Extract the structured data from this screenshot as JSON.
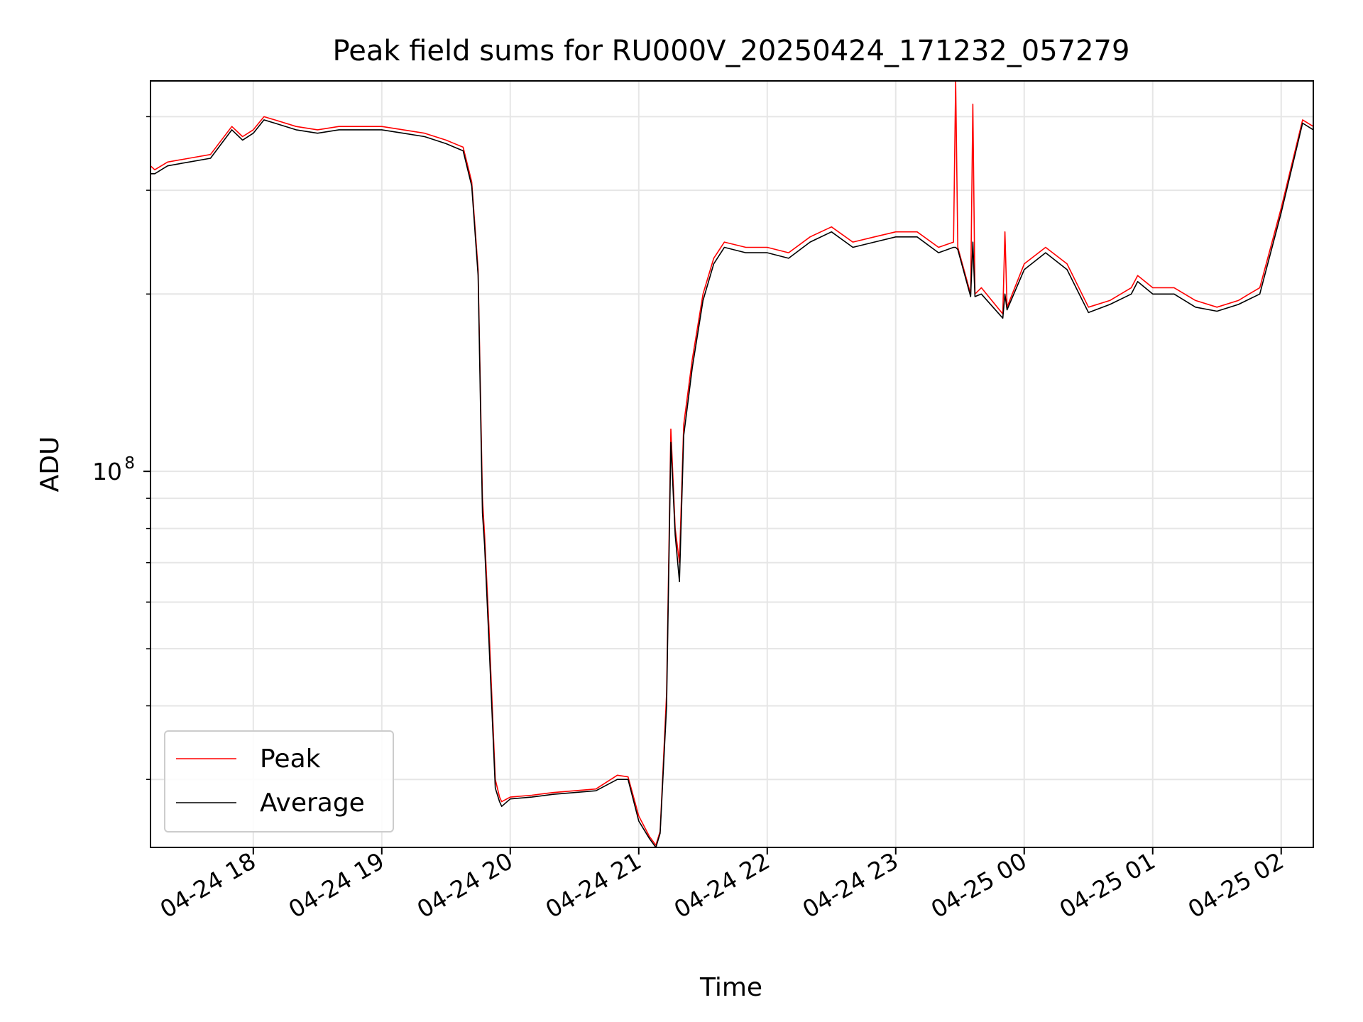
{
  "chart_data": {
    "type": "line",
    "title": "Peak field sums for RU000V_20250424_171232_057279",
    "xlabel": "Time",
    "ylabel": "ADU",
    "y_scale": "log",
    "ylim": [
      23000000,
      460000000
    ],
    "xlim": [
      "04-24 17:12",
      "04-25 02:15"
    ],
    "grid": true,
    "legend_position": "lower-left",
    "x_ticks": [
      "04-24 18",
      "04-24 19",
      "04-24 20",
      "04-24 21",
      "04-24 22",
      "04-24 23",
      "04-25 00",
      "04-25 01",
      "04-25 02"
    ],
    "y_tick_major": {
      "mantissa": "10",
      "exponent": "8",
      "value": 100000000
    },
    "y_minor_ticks": [
      30000000,
      40000000,
      50000000,
      60000000,
      70000000,
      80000000,
      90000000,
      200000000,
      300000000,
      400000000
    ],
    "series": [
      {
        "name": "Peak",
        "color": "#ff0000",
        "x": [
          "04-24 17:12",
          "04-24 17:14",
          "04-24 17:20",
          "04-24 17:30",
          "04-24 17:40",
          "04-24 17:50",
          "04-24 17:55",
          "04-24 18:00",
          "04-24 18:05",
          "04-24 18:10",
          "04-24 18:20",
          "04-24 18:30",
          "04-24 18:40",
          "04-24 18:50",
          "04-24 19:00",
          "04-24 19:10",
          "04-24 19:20",
          "04-24 19:30",
          "04-24 19:38",
          "04-24 19:42",
          "04-24 19:45",
          "04-24 19:47",
          "04-24 19:48",
          "04-24 19:50",
          "04-24 19:53",
          "04-24 19:55",
          "04-24 19:56",
          "04-24 20:00",
          "04-24 20:10",
          "04-24 20:20",
          "04-24 20:30",
          "04-24 20:40",
          "04-24 20:50",
          "04-24 20:55",
          "04-24 21:00",
          "04-24 21:05",
          "04-24 21:08",
          "04-24 21:10",
          "04-24 21:13",
          "04-24 21:15",
          "04-24 21:17",
          "04-24 21:19",
          "04-24 21:21",
          "04-24 21:25",
          "04-24 21:30",
          "04-24 21:35",
          "04-24 21:40",
          "04-24 21:50",
          "04-24 22:00",
          "04-24 22:10",
          "04-24 22:20",
          "04-24 22:30",
          "04-24 22:40",
          "04-24 22:50",
          "04-24 23:00",
          "04-24 23:10",
          "04-24 23:20",
          "04-24 23:27",
          "04-24 23:28",
          "04-24 23:29",
          "04-24 23:35",
          "04-24 23:36",
          "04-24 23:37",
          "04-24 23:40",
          "04-24 23:50",
          "04-24 23:51",
          "04-24 23:52",
          "04-25 00:00",
          "04-25 00:10",
          "04-25 00:20",
          "04-25 00:30",
          "04-25 00:40",
          "04-25 00:50",
          "04-25 00:53",
          "04-25 01:00",
          "04-25 01:10",
          "04-25 01:20",
          "04-25 01:30",
          "04-25 01:40",
          "04-25 01:45",
          "04-25 01:50",
          "04-25 02:00",
          "04-25 02:10",
          "04-25 02:15"
        ],
        "y": [
          330000000,
          325000000,
          335000000,
          340000000,
          345000000,
          385000000,
          370000000,
          380000000,
          400000000,
          395000000,
          385000000,
          380000000,
          385000000,
          385000000,
          385000000,
          380000000,
          375000000,
          365000000,
          355000000,
          310000000,
          220000000,
          90000000,
          78000000,
          55000000,
          30000000,
          28000000,
          27500000,
          28000000,
          28200000,
          28500000,
          28700000,
          28900000,
          30500000,
          30300000,
          26000000,
          24000000,
          23200000,
          24500000,
          42000000,
          118000000,
          80000000,
          70000000,
          120000000,
          155000000,
          200000000,
          230000000,
          245000000,
          240000000,
          240000000,
          235000000,
          250000000,
          260000000,
          245000000,
          250000000,
          255000000,
          255000000,
          240000000,
          245000000,
          460000000,
          240000000,
          200000000,
          420000000,
          200000000,
          205000000,
          185000000,
          255000000,
          190000000,
          225000000,
          240000000,
          225000000,
          190000000,
          195000000,
          205000000,
          215000000,
          205000000,
          205000000,
          195000000,
          190000000,
          195000000,
          200000000,
          205000000,
          280000000,
          395000000,
          385000000
        ]
      },
      {
        "name": "Average",
        "color": "#000000",
        "x": [
          "04-24 17:12",
          "04-24 17:14",
          "04-24 17:20",
          "04-24 17:30",
          "04-24 17:40",
          "04-24 17:50",
          "04-24 17:55",
          "04-24 18:00",
          "04-24 18:05",
          "04-24 18:10",
          "04-24 18:20",
          "04-24 18:30",
          "04-24 18:40",
          "04-24 18:50",
          "04-24 19:00",
          "04-24 19:10",
          "04-24 19:20",
          "04-24 19:30",
          "04-24 19:38",
          "04-24 19:42",
          "04-24 19:45",
          "04-24 19:47",
          "04-24 19:48",
          "04-24 19:50",
          "04-24 19:53",
          "04-24 19:55",
          "04-24 19:56",
          "04-24 20:00",
          "04-24 20:10",
          "04-24 20:20",
          "04-24 20:30",
          "04-24 20:40",
          "04-24 20:50",
          "04-24 20:55",
          "04-24 21:00",
          "04-24 21:05",
          "04-24 21:08",
          "04-24 21:10",
          "04-24 21:13",
          "04-24 21:15",
          "04-24 21:17",
          "04-24 21:19",
          "04-24 21:21",
          "04-24 21:25",
          "04-24 21:30",
          "04-24 21:35",
          "04-24 21:40",
          "04-24 21:50",
          "04-24 22:00",
          "04-24 22:10",
          "04-24 22:20",
          "04-24 22:30",
          "04-24 22:40",
          "04-24 22:50",
          "04-24 23:00",
          "04-24 23:10",
          "04-24 23:20",
          "04-24 23:27",
          "04-24 23:28",
          "04-24 23:29",
          "04-24 23:35",
          "04-24 23:36",
          "04-24 23:37",
          "04-24 23:40",
          "04-24 23:50",
          "04-24 23:51",
          "04-24 23:52",
          "04-25 00:00",
          "04-25 00:10",
          "04-25 00:20",
          "04-25 00:30",
          "04-25 00:40",
          "04-25 00:50",
          "04-25 00:53",
          "04-25 01:00",
          "04-25 01:10",
          "04-25 01:20",
          "04-25 01:30",
          "04-25 01:40",
          "04-25 01:45",
          "04-25 01:50",
          "04-25 02:00",
          "04-25 02:10",
          "04-25 02:15"
        ],
        "y": [
          320000000,
          320000000,
          330000000,
          335000000,
          340000000,
          380000000,
          365000000,
          375000000,
          395000000,
          390000000,
          380000000,
          375000000,
          380000000,
          380000000,
          380000000,
          375000000,
          370000000,
          360000000,
          350000000,
          305000000,
          215000000,
          85000000,
          75000000,
          52000000,
          29000000,
          27500000,
          27000000,
          27800000,
          28000000,
          28300000,
          28500000,
          28700000,
          30000000,
          30000000,
          25500000,
          23800000,
          23000000,
          24300000,
          40000000,
          112000000,
          78000000,
          65000000,
          115000000,
          150000000,
          195000000,
          225000000,
          240000000,
          235000000,
          235000000,
          230000000,
          245000000,
          255000000,
          240000000,
          245000000,
          250000000,
          250000000,
          235000000,
          240000000,
          240000000,
          238000000,
          198000000,
          245000000,
          198000000,
          200000000,
          182000000,
          200000000,
          188000000,
          220000000,
          235000000,
          220000000,
          186000000,
          192000000,
          200000000,
          210000000,
          200000000,
          200000000,
          190000000,
          187000000,
          192000000,
          196000000,
          200000000,
          275000000,
          390000000,
          380000000
        ]
      }
    ]
  }
}
